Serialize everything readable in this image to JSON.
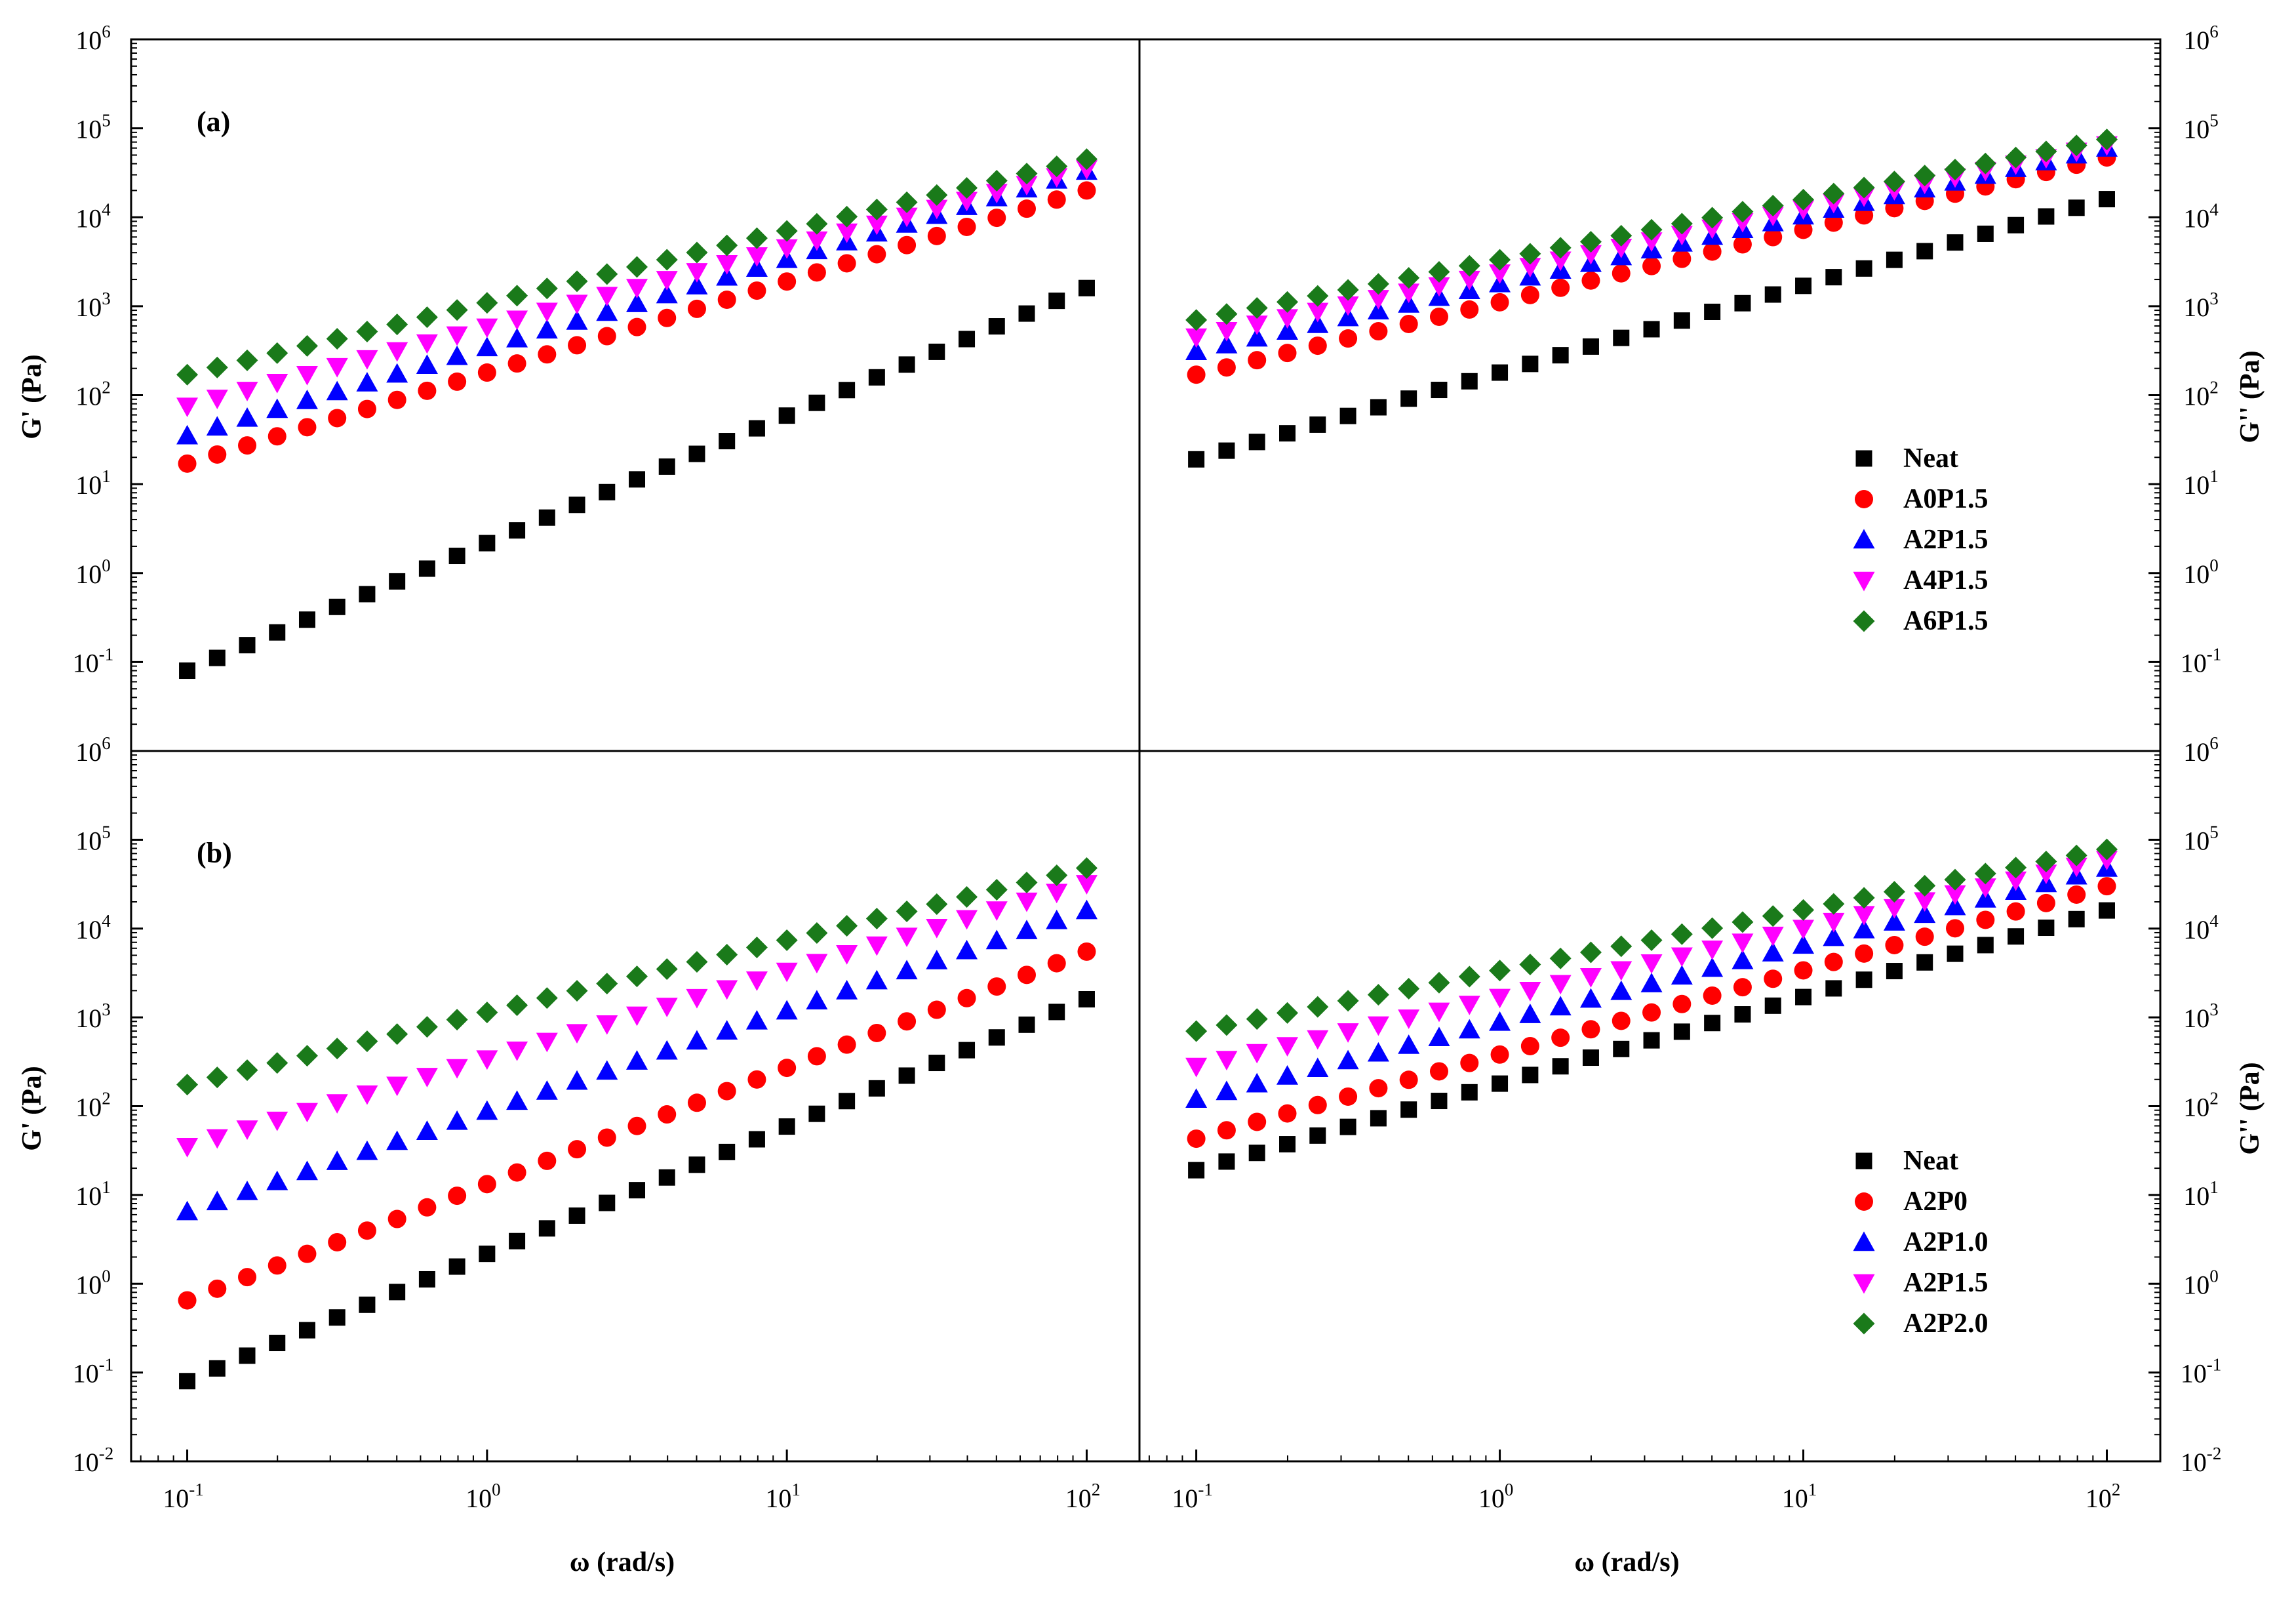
{
  "figure": {
    "y_tick_labels": [
      {
        "base": "10",
        "exp": "-2"
      },
      {
        "base": "10",
        "exp": "-1"
      },
      {
        "base": "10",
        "exp": "0"
      },
      {
        "base": "10",
        "exp": "1"
      },
      {
        "base": "10",
        "exp": "2"
      },
      {
        "base": "10",
        "exp": "3"
      },
      {
        "base": "10",
        "exp": "4"
      },
      {
        "base": "10",
        "exp": "5"
      },
      {
        "base": "10",
        "exp": "6"
      }
    ],
    "x_tick_labels": [
      {
        "base": "10",
        "exp": "-1"
      },
      {
        "base": "10",
        "exp": "0"
      },
      {
        "base": "10",
        "exp": "1"
      },
      {
        "base": "10",
        "exp": "2"
      }
    ],
    "xlabel": "ω (rad/s)",
    "ylabel_left": "G' (Pa)",
    "ylabel_right": "G'' (Pa)"
  },
  "chart_data": [
    {
      "id": "a-left",
      "type": "scatter",
      "panel_label": "(a)",
      "xscale": "log",
      "yscale": "log",
      "xlim": [
        0.065,
        150
      ],
      "ylim": [
        0.01,
        1000000
      ],
      "xlabel": "ω (rad/s)",
      "ylabel": "G' (Pa)",
      "series": [
        {
          "name": "Neat",
          "marker": "square",
          "color": "#000000",
          "from": [
            0.1,
            0.08
          ],
          "to": [
            100,
            1600
          ]
        },
        {
          "name": "A0P1.5",
          "marker": "circle",
          "color": "#ff0000",
          "from": [
            0.1,
            17
          ],
          "to": [
            100,
            20000
          ]
        },
        {
          "name": "A2P1.5",
          "marker": "triangle-up",
          "color": "#0000ff",
          "from": [
            0.1,
            35
          ],
          "to": [
            100,
            33000
          ]
        },
        {
          "name": "A4P1.5",
          "marker": "triangle-down",
          "color": "#ff00ff",
          "from": [
            0.1,
            75
          ],
          "to": [
            100,
            35000
          ]
        },
        {
          "name": "A6P1.5",
          "marker": "diamond",
          "color": "#1a7a1a",
          "from": [
            0.1,
            170
          ],
          "to": [
            100,
            45000
          ]
        }
      ]
    },
    {
      "id": "a-right",
      "type": "scatter",
      "xscale": "log",
      "yscale": "log",
      "xlim": [
        0.065,
        150
      ],
      "ylim": [
        0.01,
        1000000
      ],
      "xlabel": "ω (rad/s)",
      "ylabel": "G'' (Pa)",
      "legend_position": "bottom-right",
      "series": [
        {
          "name": "Neat",
          "marker": "square",
          "color": "#000000",
          "from": [
            0.1,
            19
          ],
          "to": [
            100,
            16000
          ]
        },
        {
          "name": "A0P1.5",
          "marker": "circle",
          "color": "#ff0000",
          "from": [
            0.1,
            170
          ],
          "to": [
            100,
            47000
          ]
        },
        {
          "name": "A2P1.5",
          "marker": "triangle-up",
          "color": "#0000ff",
          "from": [
            0.1,
            310
          ],
          "to": [
            100,
            60000
          ]
        },
        {
          "name": "A4P1.5",
          "marker": "triangle-down",
          "color": "#ff00ff",
          "from": [
            0.1,
            450
          ],
          "to": [
            100,
            65000
          ]
        },
        {
          "name": "A6P1.5",
          "marker": "diamond",
          "color": "#1a7a1a",
          "from": [
            0.1,
            700
          ],
          "to": [
            100,
            75000
          ]
        }
      ]
    },
    {
      "id": "b-left",
      "type": "scatter",
      "panel_label": "(b)",
      "xscale": "log",
      "yscale": "log",
      "xlim": [
        0.065,
        150
      ],
      "ylim": [
        0.01,
        1000000
      ],
      "xlabel": "ω (rad/s)",
      "ylabel": "G' (Pa)",
      "series": [
        {
          "name": "Neat",
          "marker": "square",
          "color": "#000000",
          "from": [
            0.1,
            0.08
          ],
          "to": [
            100,
            1600
          ]
        },
        {
          "name": "A2P0",
          "marker": "circle",
          "color": "#ff0000",
          "from": [
            0.1,
            0.65
          ],
          "to": [
            100,
            5500
          ]
        },
        {
          "name": "A2P1.0",
          "marker": "triangle-up",
          "color": "#0000ff",
          "from": [
            0.1,
            6.5
          ],
          "to": [
            100,
            16000
          ]
        },
        {
          "name": "A2P1.5",
          "marker": "triangle-down",
          "color": "#ff00ff",
          "from": [
            0.1,
            35
          ],
          "to": [
            100,
            32000
          ]
        },
        {
          "name": "A2P2.0",
          "marker": "diamond",
          "color": "#1a7a1a",
          "from": [
            0.1,
            175
          ],
          "to": [
            100,
            48000
          ]
        }
      ]
    },
    {
      "id": "b-right",
      "type": "scatter",
      "xscale": "log",
      "yscale": "log",
      "xlim": [
        0.065,
        150
      ],
      "ylim": [
        0.01,
        1000000
      ],
      "xlabel": "ω (rad/s)",
      "ylabel": "G'' (Pa)",
      "legend_position": "bottom-right",
      "series": [
        {
          "name": "Neat",
          "marker": "square",
          "color": "#000000",
          "from": [
            0.1,
            19
          ],
          "to": [
            100,
            16000
          ]
        },
        {
          "name": "A2P0",
          "marker": "circle",
          "color": "#ff0000",
          "from": [
            0.1,
            43
          ],
          "to": [
            100,
            30000
          ]
        },
        {
          "name": "A2P1.0",
          "marker": "triangle-up",
          "color": "#0000ff",
          "from": [
            0.1,
            120
          ],
          "to": [
            100,
            48000
          ]
        },
        {
          "name": "A2P1.5",
          "marker": "triangle-down",
          "color": "#ff00ff",
          "from": [
            0.1,
            280
          ],
          "to": [
            100,
            60000
          ]
        },
        {
          "name": "A2P2.0",
          "marker": "diamond",
          "color": "#1a7a1a",
          "from": [
            0.1,
            700
          ],
          "to": [
            100,
            78000
          ]
        }
      ]
    }
  ]
}
